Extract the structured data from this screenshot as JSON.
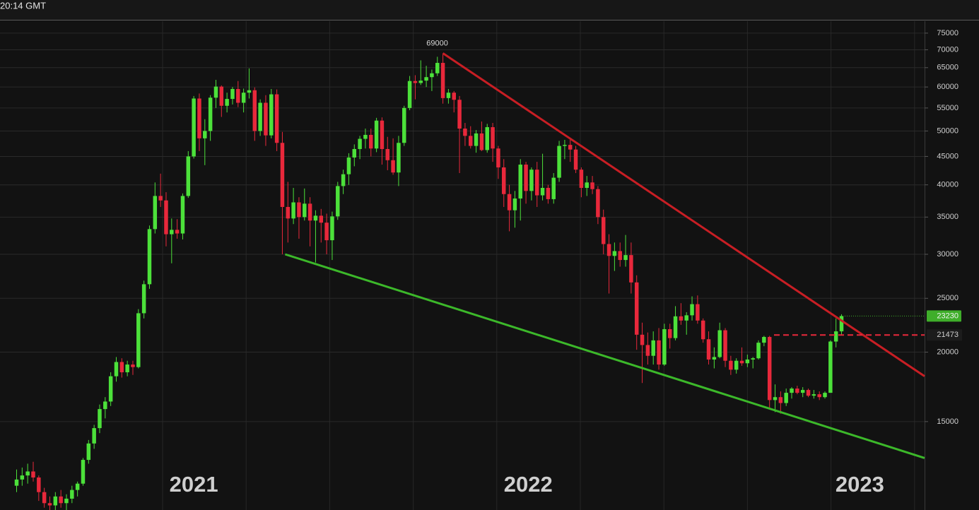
{
  "chart_data": {
    "type": "candlestick",
    "clock": "20:14 GMT",
    "log_scale": true,
    "grid": true,
    "up_color": "#4ce13a",
    "down_color": "#e8283b",
    "ylim": [
      10400,
      78800
    ],
    "yticks": [
      15000,
      20000,
      25000,
      30000,
      35000,
      40000,
      45000,
      50000,
      55000,
      60000,
      65000,
      70000,
      75000
    ],
    "xlim": [
      -3,
      164
    ],
    "xticks": [
      {
        "value": 32,
        "label": "2021"
      },
      {
        "value": 92.4,
        "label": "2022"
      },
      {
        "value": 152.3,
        "label": "2023"
      }
    ],
    "last_price": 23230,
    "last_price_color": "#3fae2a",
    "level": 21473,
    "level_color": "#e8283b",
    "trendlines": [
      {
        "color": "#c81e24",
        "x": [
          77,
          164
        ],
        "y": [
          69000,
          18100
        ]
      },
      {
        "color": "#3cb82a",
        "x": [
          48.5,
          164
        ],
        "y": [
          30000,
          12900
        ]
      }
    ],
    "candles": [
      [
        11500,
        12300,
        11200,
        11800
      ],
      [
        11800,
        12400,
        11500,
        12000
      ],
      [
        12000,
        12600,
        11600,
        12200
      ],
      [
        12200,
        12700,
        11700,
        11900
      ],
      [
        11900,
        12000,
        10800,
        11200
      ],
      [
        11200,
        11400,
        10500,
        10700
      ],
      [
        10700,
        11000,
        10400,
        10600
      ],
      [
        10600,
        11200,
        10400,
        11000
      ],
      [
        11000,
        11300,
        10500,
        10700
      ],
      [
        10700,
        11100,
        10400,
        10900
      ],
      [
        10900,
        11500,
        10700,
        11300
      ],
      [
        11300,
        11700,
        11000,
        11600
      ],
      [
        11600,
        12900,
        11500,
        12800
      ],
      [
        12800,
        13900,
        12600,
        13700
      ],
      [
        13700,
        14800,
        13400,
        14600
      ],
      [
        14600,
        16100,
        14300,
        15800
      ],
      [
        15800,
        16600,
        15200,
        16300
      ],
      [
        16300,
        18400,
        16000,
        18100
      ],
      [
        18100,
        19600,
        17700,
        19200
      ],
      [
        19200,
        19500,
        18000,
        18400
      ],
      [
        18400,
        19300,
        18100,
        19000
      ],
      [
        19000,
        19300,
        18200,
        18800
      ],
      [
        18800,
        23900,
        18700,
        23500
      ],
      [
        23500,
        26900,
        23000,
        26500
      ],
      [
        26500,
        33800,
        26000,
        33300
      ],
      [
        33300,
        40400,
        32700,
        38200
      ],
      [
        38200,
        41900,
        36500,
        37500
      ],
      [
        37500,
        38800,
        31000,
        32600
      ],
      [
        32600,
        34800,
        28900,
        33200
      ],
      [
        33200,
        34700,
        32000,
        32700
      ],
      [
        32700,
        38600,
        31900,
        38200
      ],
      [
        38200,
        46000,
        37900,
        45000
      ],
      [
        45000,
        57800,
        44600,
        57200
      ],
      [
        57200,
        58400,
        46000,
        48500
      ],
      [
        48500,
        52500,
        43400,
        50000
      ],
      [
        50000,
        58000,
        48000,
        57400
      ],
      [
        57400,
        61800,
        55000,
        60100
      ],
      [
        60100,
        60400,
        53000,
        55500
      ],
      [
        55500,
        58600,
        54000,
        57100
      ],
      [
        57100,
        60000,
        55800,
        59500
      ],
      [
        59500,
        61500,
        55200,
        56200
      ],
      [
        56200,
        59600,
        54000,
        58600
      ],
      [
        58600,
        64800,
        57200,
        59200
      ],
      [
        59200,
        59900,
        48000,
        50000
      ],
      [
        50000,
        57000,
        49000,
        56200
      ],
      [
        56200,
        58000,
        47000,
        49100
      ],
      [
        49100,
        59500,
        48500,
        58200
      ],
      [
        58200,
        59400,
        46000,
        47600
      ],
      [
        47600,
        49800,
        30000,
        36500
      ],
      [
        36500,
        40500,
        31500,
        34800
      ],
      [
        34800,
        39500,
        34000,
        37200
      ],
      [
        37200,
        38000,
        32000,
        35000
      ],
      [
        35000,
        39400,
        34500,
        37000
      ],
      [
        37000,
        38000,
        31000,
        34500
      ],
      [
        34500,
        36000,
        29000,
        35200
      ],
      [
        35200,
        36200,
        31500,
        34200
      ],
      [
        34200,
        35500,
        30000,
        31800
      ],
      [
        31800,
        35800,
        29300,
        35100
      ],
      [
        35100,
        40500,
        34600,
        39800
      ],
      [
        39800,
        42600,
        38500,
        41800
      ],
      [
        41800,
        45600,
        40000,
        44800
      ],
      [
        44800,
        47300,
        43200,
        46400
      ],
      [
        46400,
        49000,
        44500,
        48400
      ],
      [
        48400,
        50500,
        46500,
        49200
      ],
      [
        49200,
        50500,
        45000,
        46500
      ],
      [
        46500,
        52800,
        45800,
        52200
      ],
      [
        52200,
        52900,
        43500,
        46400
      ],
      [
        46400,
        48800,
        42500,
        44300
      ],
      [
        44300,
        48500,
        41700,
        42100
      ],
      [
        42100,
        49000,
        39800,
        47600
      ],
      [
        47600,
        55500,
        47000,
        55000
      ],
      [
        55000,
        62800,
        54500,
        61500
      ],
      [
        61500,
        63000,
        57000,
        61000
      ],
      [
        61000,
        67000,
        60500,
        61600
      ],
      [
        61600,
        65500,
        60000,
        62500
      ],
      [
        62500,
        64500,
        59000,
        63500
      ],
      [
        63500,
        68000,
        62800,
        66300
      ],
      [
        66300,
        69000,
        56000,
        57300
      ],
      [
        57300,
        59500,
        56000,
        58600
      ],
      [
        58600,
        59000,
        54000,
        56900
      ],
      [
        56900,
        57800,
        42000,
        50500
      ],
      [
        50500,
        51700,
        47000,
        49000
      ],
      [
        49000,
        51000,
        46500,
        47000
      ],
      [
        47000,
        50200,
        45700,
        49500
      ],
      [
        49500,
        52000,
        46000,
        46200
      ],
      [
        46200,
        51500,
        45700,
        50800
      ],
      [
        50800,
        51700,
        44000,
        46500
      ],
      [
        46500,
        47000,
        41000,
        43000
      ],
      [
        43000,
        44500,
        36500,
        38500
      ],
      [
        38500,
        40000,
        33000,
        36000
      ],
      [
        36000,
        39000,
        33500,
        37800
      ],
      [
        37800,
        44500,
        34500,
        43500
      ],
      [
        43500,
        44000,
        37000,
        39000
      ],
      [
        39000,
        43000,
        37500,
        42600
      ],
      [
        42600,
        44000,
        36500,
        38300
      ],
      [
        38300,
        45500,
        37500,
        39500
      ],
      [
        39500,
        40000,
        37000,
        37700
      ],
      [
        37700,
        42000,
        37000,
        41200
      ],
      [
        41200,
        48000,
        40500,
        47000
      ],
      [
        47000,
        48200,
        44500,
        47200
      ],
      [
        47200,
        48200,
        44000,
        46300
      ],
      [
        46300,
        47000,
        42000,
        42600
      ],
      [
        42600,
        43000,
        38000,
        39500
      ],
      [
        39500,
        41500,
        38200,
        40400
      ],
      [
        40400,
        41500,
        38500,
        39300
      ],
      [
        39300,
        39800,
        34000,
        35000
      ],
      [
        35000,
        36100,
        30000,
        31300
      ],
      [
        31300,
        32600,
        25500,
        29800
      ],
      [
        29800,
        31500,
        28000,
        30400
      ],
      [
        30400,
        31500,
        28500,
        29300
      ],
      [
        29300,
        32500,
        28500,
        29900
      ],
      [
        29900,
        31500,
        25500,
        26700
      ],
      [
        26700,
        27500,
        20200,
        21500
      ],
      [
        21500,
        22600,
        17600,
        20600
      ],
      [
        20600,
        21700,
        19000,
        19700
      ],
      [
        19700,
        21800,
        19000,
        21000
      ],
      [
        21000,
        22100,
        18600,
        19000
      ],
      [
        19000,
        22500,
        18900,
        22000
      ],
      [
        22000,
        22500,
        20300,
        21200
      ],
      [
        21200,
        24200,
        21000,
        23200
      ],
      [
        23200,
        24500,
        22400,
        22800
      ],
      [
        22800,
        23600,
        21500,
        23300
      ],
      [
        23300,
        25200,
        22800,
        24400
      ],
      [
        24400,
        25300,
        22500,
        22800
      ],
      [
        22800,
        23000,
        20800,
        21100
      ],
      [
        21100,
        21800,
        19000,
        19400
      ],
      [
        19400,
        20400,
        18700,
        19600
      ],
      [
        19600,
        22600,
        19500,
        21900
      ],
      [
        21900,
        22100,
        18800,
        19300
      ],
      [
        19300,
        19700,
        18200,
        18600
      ],
      [
        18600,
        19500,
        18300,
        19300
      ],
      [
        19300,
        20400,
        18900,
        19100
      ],
      [
        19100,
        19800,
        18800,
        19400
      ],
      [
        19400,
        19600,
        18700,
        19500
      ],
      [
        19500,
        21000,
        19400,
        20800
      ],
      [
        20800,
        21400,
        20500,
        21300
      ],
      [
        21300,
        21400,
        15900,
        16400
      ],
      [
        16400,
        17500,
        15600,
        16600
      ],
      [
        16600,
        17000,
        15500,
        16200
      ],
      [
        16200,
        17200,
        16000,
        16900
      ],
      [
        16900,
        17300,
        16500,
        17200
      ],
      [
        17200,
        17400,
        16800,
        16900
      ],
      [
        16900,
        17300,
        16600,
        17100
      ],
      [
        17100,
        17200,
        16600,
        16700
      ],
      [
        16700,
        17100,
        16500,
        16800
      ],
      [
        16800,
        17000,
        16400,
        16600
      ],
      [
        16600,
        17000,
        16500,
        16900
      ],
      [
        16900,
        21000,
        16900,
        20900
      ],
      [
        20900,
        23000,
        20400,
        21800
      ],
      [
        21800,
        23400,
        21500,
        23230
      ]
    ]
  }
}
